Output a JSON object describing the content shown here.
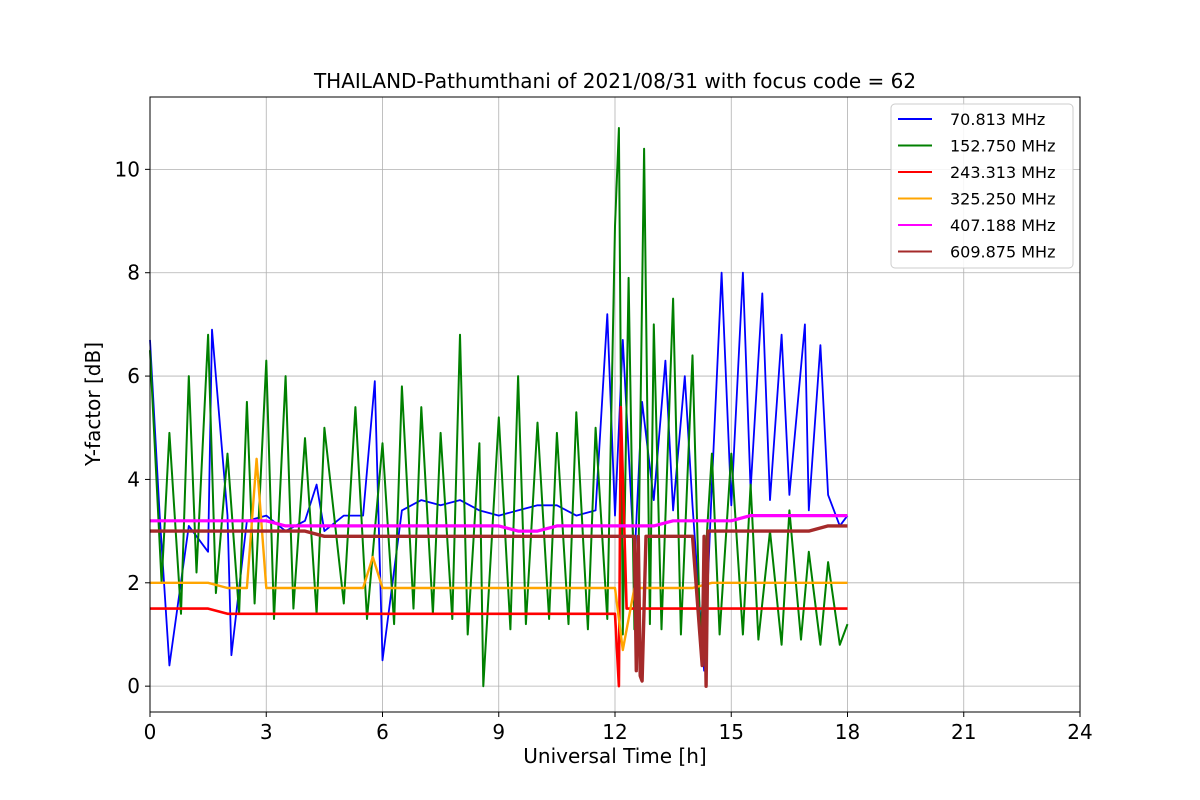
{
  "chart_data": {
    "type": "line",
    "title": "THAILAND-Pathumthani of 2021/08/31 with focus code = 62",
    "xlabel": "Universal Time [h]",
    "ylabel": "Y-factor [dB]",
    "xlim": [
      0,
      24
    ],
    "ylim": [
      -0.5,
      11.4
    ],
    "xticks": [
      0,
      3,
      6,
      9,
      12,
      15,
      18,
      21,
      24
    ],
    "yticks": [
      0,
      2,
      4,
      6,
      8,
      10
    ],
    "grid": true,
    "legend_position": "top-right",
    "series": [
      {
        "name": " 70.813 MHz",
        "color": "#0000ff",
        "x": [
          0.0,
          0.25,
          0.5,
          1.0,
          1.5,
          1.6,
          2.0,
          2.1,
          2.5,
          3.0,
          3.5,
          4.0,
          4.3,
          4.5,
          5.0,
          5.5,
          5.8,
          6.0,
          6.5,
          7.0,
          7.5,
          8.0,
          8.5,
          9.0,
          9.5,
          10.0,
          10.5,
          11.0,
          11.5,
          11.8,
          12.0,
          12.2,
          12.5,
          12.7,
          13.0,
          13.3,
          13.5,
          13.8,
          14.0,
          14.3,
          14.5,
          14.75,
          15.0,
          15.3,
          15.5,
          15.8,
          16.0,
          16.3,
          16.5,
          16.9,
          17.0,
          17.3,
          17.5,
          17.8,
          18.0
        ],
        "values": [
          6.7,
          3.3,
          0.4,
          3.1,
          2.6,
          6.9,
          3.3,
          0.6,
          3.2,
          3.3,
          3.0,
          3.2,
          3.9,
          3.0,
          3.3,
          3.3,
          5.9,
          0.5,
          3.4,
          3.6,
          3.5,
          3.6,
          3.4,
          3.3,
          3.4,
          3.5,
          3.5,
          3.3,
          3.4,
          7.2,
          3.3,
          6.7,
          2.4,
          5.5,
          3.6,
          6.3,
          3.4,
          6.0,
          3.5,
          0.3,
          3.9,
          8.0,
          3.5,
          8.0,
          3.8,
          7.6,
          3.6,
          6.8,
          3.7,
          7.0,
          3.4,
          6.6,
          3.7,
          3.1,
          3.3
        ]
      },
      {
        "name": "152.750 MHz",
        "color": "#008000",
        "x": [
          0.0,
          0.3,
          0.5,
          0.8,
          1.0,
          1.2,
          1.5,
          1.7,
          2.0,
          2.3,
          2.5,
          2.7,
          3.0,
          3.2,
          3.5,
          3.7,
          4.0,
          4.3,
          4.5,
          5.0,
          5.3,
          5.6,
          6.0,
          6.3,
          6.5,
          6.8,
          7.0,
          7.3,
          7.5,
          7.8,
          8.0,
          8.2,
          8.5,
          8.6,
          9.0,
          9.3,
          9.5,
          9.7,
          10.0,
          10.3,
          10.5,
          10.8,
          11.0,
          11.3,
          11.5,
          11.8,
          12.0,
          12.1,
          12.2,
          12.35,
          12.5,
          12.6,
          12.75,
          12.9,
          13.0,
          13.2,
          13.5,
          13.7,
          14.0,
          14.2,
          14.5,
          14.7,
          15.0,
          15.3,
          15.5,
          15.7,
          16.0,
          16.3,
          16.5,
          16.8,
          17.0,
          17.3,
          17.5,
          17.8,
          18.0
        ],
        "values": [
          6.5,
          2.0,
          4.9,
          1.4,
          6.0,
          2.2,
          6.8,
          1.8,
          4.5,
          1.4,
          5.5,
          1.6,
          6.3,
          1.3,
          6.0,
          1.5,
          4.8,
          1.4,
          5.0,
          1.6,
          5.4,
          1.3,
          4.7,
          1.2,
          5.8,
          1.5,
          5.4,
          1.4,
          4.9,
          1.3,
          6.8,
          1.0,
          4.7,
          0.0,
          5.2,
          1.1,
          6.0,
          1.2,
          5.1,
          1.3,
          4.9,
          1.2,
          5.3,
          1.1,
          5.0,
          1.3,
          8.9,
          10.8,
          1.0,
          7.9,
          1.1,
          2.2,
          10.4,
          1.2,
          7.0,
          1.1,
          7.5,
          1.0,
          6.4,
          0.9,
          4.5,
          1.0,
          4.5,
          1.0,
          3.9,
          0.9,
          3.0,
          0.8,
          3.4,
          0.9,
          2.6,
          0.8,
          2.4,
          0.8,
          1.2
        ]
      },
      {
        "name": "243.313 MHz",
        "color": "#ff0000",
        "x": [
          0.0,
          0.5,
          1.0,
          1.5,
          2.0,
          2.5,
          3.0,
          3.5,
          4.0,
          4.5,
          5.0,
          5.5,
          6.0,
          6.5,
          7.0,
          7.5,
          8.0,
          8.5,
          9.0,
          9.5,
          10.0,
          10.5,
          11.0,
          11.5,
          12.0,
          12.1,
          12.15,
          12.3,
          12.5,
          13.0,
          13.5,
          14.0,
          14.5,
          15.0,
          15.5,
          16.0,
          16.5,
          17.0,
          17.5,
          18.0
        ],
        "values": [
          1.5,
          1.5,
          1.5,
          1.5,
          1.4,
          1.4,
          1.4,
          1.4,
          1.4,
          1.4,
          1.4,
          1.4,
          1.4,
          1.4,
          1.4,
          1.4,
          1.4,
          1.4,
          1.4,
          1.4,
          1.4,
          1.4,
          1.4,
          1.4,
          1.4,
          0.0,
          5.4,
          1.5,
          1.5,
          1.5,
          1.5,
          1.5,
          1.5,
          1.5,
          1.5,
          1.5,
          1.5,
          1.5,
          1.5,
          1.5
        ]
      },
      {
        "name": "325.250 MHz",
        "color": "#ffa500",
        "x": [
          0.0,
          0.5,
          1.0,
          1.5,
          2.0,
          2.5,
          2.75,
          3.0,
          3.5,
          4.0,
          4.5,
          5.0,
          5.5,
          5.75,
          6.0,
          6.5,
          7.0,
          7.5,
          8.0,
          8.5,
          9.0,
          9.5,
          10.0,
          10.5,
          11.0,
          11.5,
          12.0,
          12.2,
          12.5,
          13.0,
          13.5,
          14.0,
          14.5,
          15.0,
          15.5,
          16.0,
          16.5,
          17.0,
          17.5,
          18.0
        ],
        "values": [
          2.0,
          2.0,
          2.0,
          2.0,
          1.9,
          1.9,
          4.4,
          1.9,
          1.9,
          1.9,
          1.9,
          1.9,
          1.9,
          2.5,
          1.9,
          1.9,
          1.9,
          1.9,
          1.9,
          1.9,
          1.9,
          1.9,
          1.9,
          1.9,
          1.9,
          1.9,
          1.9,
          0.7,
          1.9,
          1.9,
          1.9,
          1.9,
          2.0,
          2.0,
          2.0,
          2.0,
          2.0,
          2.0,
          2.0,
          2.0
        ]
      },
      {
        "name": "407.188 MHz",
        "color": "#ff00ff",
        "x": [
          0.0,
          0.5,
          1.0,
          1.5,
          2.0,
          2.5,
          3.0,
          3.5,
          4.0,
          4.5,
          5.0,
          5.5,
          6.0,
          6.5,
          7.0,
          7.5,
          8.0,
          8.5,
          9.0,
          9.5,
          10.0,
          10.5,
          11.0,
          11.5,
          12.0,
          12.5,
          13.0,
          13.5,
          14.0,
          14.5,
          15.0,
          15.5,
          16.0,
          16.5,
          17.0,
          17.5,
          18.0
        ],
        "values": [
          3.2,
          3.2,
          3.2,
          3.2,
          3.2,
          3.2,
          3.2,
          3.1,
          3.1,
          3.1,
          3.1,
          3.1,
          3.1,
          3.1,
          3.1,
          3.1,
          3.1,
          3.1,
          3.1,
          3.0,
          3.0,
          3.1,
          3.1,
          3.1,
          3.1,
          3.1,
          3.1,
          3.2,
          3.2,
          3.2,
          3.2,
          3.3,
          3.3,
          3.3,
          3.3,
          3.3,
          3.3
        ]
      },
      {
        "name": "609.875 MHz",
        "color": "#a52a2a",
        "x": [
          0.0,
          0.5,
          1.0,
          1.5,
          2.0,
          2.5,
          3.0,
          3.5,
          4.0,
          4.5,
          5.0,
          5.5,
          6.0,
          6.5,
          7.0,
          7.5,
          8.0,
          8.5,
          9.0,
          9.5,
          10.0,
          10.5,
          11.0,
          11.5,
          12.0,
          12.5,
          12.55,
          12.6,
          12.65,
          12.7,
          12.8,
          13.0,
          13.5,
          14.0,
          14.25,
          14.3,
          14.35,
          14.4,
          14.5,
          15.0,
          15.5,
          16.0,
          16.5,
          17.0,
          17.5,
          18.0
        ],
        "values": [
          3.0,
          3.0,
          3.0,
          3.0,
          3.0,
          3.0,
          3.0,
          3.0,
          3.0,
          2.9,
          2.9,
          2.9,
          2.9,
          2.9,
          2.9,
          2.9,
          2.9,
          2.9,
          2.9,
          2.9,
          2.9,
          2.9,
          2.9,
          2.9,
          2.9,
          2.9,
          0.3,
          2.9,
          0.2,
          0.1,
          2.9,
          2.9,
          2.9,
          2.9,
          0.4,
          2.9,
          0.0,
          3.0,
          3.0,
          3.0,
          3.0,
          3.0,
          3.0,
          3.0,
          3.1,
          3.1
        ]
      }
    ]
  }
}
